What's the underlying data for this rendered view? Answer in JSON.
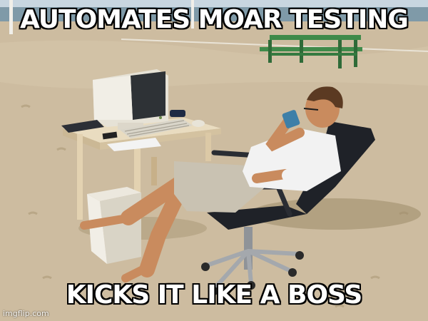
{
  "meme": {
    "top_text": "AUTOMATES MOAR TESTING",
    "bottom_text": "KICKS IT LIKE A BOSS",
    "watermark": "imgflip.com"
  },
  "scene": {
    "description_icons": [
      "beach-background",
      "park-bench",
      "crt-monitor",
      "keyboard",
      "computer-tower",
      "wooden-desk",
      "office-chair",
      "man-drinking-coffee"
    ],
    "colors": {
      "sand": "#cdbca0",
      "sky": "#c8d6e0",
      "sea": "#7f9aa8",
      "beige_computer": "#e6e2d6",
      "shirt": "#f2f2f2",
      "shorts": "#c9c2b2",
      "skin": "#c98b5e",
      "chair": "#1f2228",
      "bench": "#3f8a4a",
      "caption_text": "#ffffff",
      "caption_outline": "#000000"
    }
  }
}
